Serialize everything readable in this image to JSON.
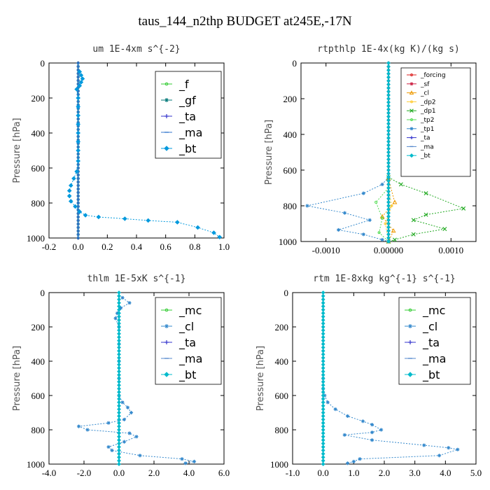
{
  "figure": {
    "title": "taus_144_n2thp  BUDGET at245E,-17N"
  },
  "chart_data": [
    {
      "type": "line",
      "title": "um  1E-4xm s^{-2}",
      "ylabel": "Pressure [hPa]",
      "xlim": [
        -0.2,
        1.0
      ],
      "ylim": [
        1000,
        0
      ],
      "xticks": [
        "-0.2",
        "0.0",
        "0.2",
        "0.4",
        "0.6",
        "0.8",
        "1.0"
      ],
      "xtick_values": [
        -0.2,
        0.0,
        0.2,
        0.4,
        0.6,
        0.8,
        1.0
      ],
      "yticks": [
        "0",
        "200",
        "400",
        "600",
        "800",
        "1000"
      ],
      "ytick_values": [
        0,
        200,
        400,
        600,
        800,
        1000
      ],
      "legend_position": "top-right",
      "series": [
        {
          "name": "_f",
          "color": "#33cc33",
          "marker": "circle",
          "x": [
            0,
            0
          ],
          "y": [
            0,
            1000
          ]
        },
        {
          "name": "_gf",
          "color": "#007777",
          "marker": "star",
          "x": [
            0,
            0
          ],
          "y": [
            0,
            1000
          ]
        },
        {
          "name": "_ta",
          "color": "#3333cc",
          "marker": "plus",
          "x": [
            0,
            0
          ],
          "y": [
            0,
            1000
          ]
        },
        {
          "name": "_ma",
          "color": "#3377cc",
          "marker": "dash",
          "x": [
            0,
            0
          ],
          "y": [
            0,
            1000
          ]
        },
        {
          "name": "_bt",
          "color": "#0099dd",
          "marker": "diamond",
          "x": [
            0.01,
            0.02,
            0.03,
            0.02,
            0.01,
            -0.01,
            0.0,
            0.0,
            0.0,
            0.0,
            0.0,
            0.0,
            0.0,
            0.0,
            -0.01,
            -0.03,
            -0.05,
            -0.06,
            -0.06,
            -0.05,
            -0.02,
            0.01,
            0.05,
            0.14,
            0.32,
            0.48,
            0.68,
            0.82,
            0.93,
            0.97
          ],
          "y": [
            50,
            70,
            90,
            110,
            130,
            150,
            200,
            250,
            300,
            350,
            400,
            450,
            500,
            560,
            620,
            660,
            700,
            730,
            760,
            790,
            820,
            850,
            870,
            880,
            890,
            900,
            910,
            940,
            970,
            995
          ]
        }
      ]
    },
    {
      "type": "line",
      "title": "rtpthlp  1E-4x(kg K)/(kg s)",
      "ylabel": "Pressure [hPa]",
      "xlim": [
        -0.0014,
        0.0014
      ],
      "ylim": [
        1000,
        0
      ],
      "xticks": [
        "-0.0010",
        "0.00000",
        "0.0010"
      ],
      "xtick_values": [
        -0.001,
        0.0,
        0.001
      ],
      "yticks": [
        "0",
        "200",
        "400",
        "600",
        "800",
        "1000"
      ],
      "ytick_values": [
        0,
        200,
        400,
        600,
        800,
        1000
      ],
      "legend_position": "top-right",
      "series": [
        {
          "name": "_forcing",
          "color": "#dd2222",
          "marker": "circle",
          "x": [
            0,
            0
          ],
          "y": [
            0,
            1000
          ]
        },
        {
          "name": "_sf",
          "color": "#cc2244",
          "marker": "star",
          "x": [
            0,
            0
          ],
          "y": [
            0,
            1000
          ]
        },
        {
          "name": "_cl",
          "color": "#ee9900",
          "marker": "triangle",
          "x": [
            0,
            0.0001,
            -0.0001,
            8e-05,
            0
          ],
          "y": [
            650,
            780,
            860,
            940,
            1000
          ]
        },
        {
          "name": "_dp2",
          "color": "#ffcc33",
          "marker": "circle",
          "x": [
            0,
            5e-05,
            -5e-05,
            0
          ],
          "y": [
            700,
            800,
            900,
            1000
          ]
        },
        {
          "name": "_dp1",
          "color": "#22aa22",
          "marker": "cross",
          "x": [
            0.0,
            0.0002,
            0.0006,
            0.0012,
            0.0006,
            0.0004,
            0.0009,
            0.0004,
            0.0001,
            0.0
          ],
          "y": [
            640,
            680,
            730,
            815,
            850,
            880,
            930,
            960,
            990,
            1000
          ]
        },
        {
          "name": "_tp2",
          "color": "#55dd55",
          "marker": "circle",
          "x": [
            0,
            -0.0002,
            -0.0001,
            -0.00015,
            0
          ],
          "y": [
            700,
            780,
            870,
            950,
            1000
          ]
        },
        {
          "name": "_tp1",
          "color": "#3388cc",
          "marker": "star",
          "x": [
            0.0,
            -0.0001,
            -0.0004,
            -0.0013,
            -0.0007,
            -0.0003,
            -0.0008,
            -0.0004,
            -0.0001,
            0.0
          ],
          "y": [
            640,
            680,
            730,
            800,
            840,
            880,
            935,
            960,
            990,
            1000
          ]
        },
        {
          "name": "_ta",
          "color": "#3333cc",
          "marker": "plus",
          "x": [
            0,
            0
          ],
          "y": [
            0,
            1000
          ]
        },
        {
          "name": "_ma",
          "color": "#5588cc",
          "marker": "dash",
          "x": [
            0,
            0
          ],
          "y": [
            0,
            1000
          ]
        },
        {
          "name": "_bt",
          "color": "#00bbcc",
          "marker": "diamond",
          "x": [
            0,
            0
          ],
          "y": [
            0,
            1000
          ]
        }
      ]
    },
    {
      "type": "line",
      "title": "thlm  1E-5xK s^{-1}",
      "ylabel": "Pressure [hPa]",
      "xlim": [
        -4.0,
        6.0
      ],
      "ylim": [
        1000,
        0
      ],
      "xticks": [
        "-4.0",
        "-2.0",
        "0.0",
        "2.0",
        "4.0",
        "6.0"
      ],
      "xtick_values": [
        -4,
        -2,
        0,
        2,
        4,
        6
      ],
      "yticks": [
        "0",
        "200",
        "400",
        "600",
        "800",
        "1000"
      ],
      "ytick_values": [
        0,
        200,
        400,
        600,
        800,
        1000
      ],
      "legend_position": "top-right",
      "series": [
        {
          "name": "_mc",
          "color": "#33cc33",
          "marker": "circle",
          "x": [
            0,
            0
          ],
          "y": [
            0,
            1000
          ]
        },
        {
          "name": "_cl",
          "color": "#3388cc",
          "marker": "star",
          "x": [
            0.2,
            0.6,
            0.1,
            -0.1,
            -0.2,
            0.0,
            0.0,
            0.0,
            0.0,
            0.0,
            0.2,
            0.5,
            0.7,
            0.3,
            -0.6,
            -2.3,
            -1.8,
            0.6,
            1.0,
            0.3,
            -0.6,
            -0.4,
            1.2,
            3.6,
            4.3,
            3.8
          ],
          "y": [
            30,
            60,
            90,
            120,
            150,
            200,
            300,
            400,
            500,
            600,
            640,
            670,
            700,
            740,
            760,
            780,
            800,
            820,
            840,
            870,
            900,
            920,
            950,
            970,
            985,
            995
          ]
        },
        {
          "name": "_ta",
          "color": "#3333cc",
          "marker": "plus",
          "x": [
            0,
            0
          ],
          "y": [
            0,
            1000
          ]
        },
        {
          "name": "_ma",
          "color": "#5588cc",
          "marker": "dash",
          "x": [
            0,
            0
          ],
          "y": [
            0,
            1000
          ]
        },
        {
          "name": "_bt",
          "color": "#00bbcc",
          "marker": "diamond",
          "x": [
            0,
            0
          ],
          "y": [
            0,
            1000
          ]
        }
      ]
    },
    {
      "type": "line",
      "title": "rtm  1E-8xkg kg^{-1} s^{-1}",
      "ylabel": "Pressure [hPa]",
      "xlim": [
        -1.0,
        5.0
      ],
      "ylim": [
        1000,
        0
      ],
      "xticks": [
        "-1.0",
        "0.0",
        "1.0",
        "2.0",
        "3.0",
        "4.0",
        "5.0"
      ],
      "xtick_values": [
        -1,
        0,
        1,
        2,
        3,
        4,
        5
      ],
      "yticks": [
        "0",
        "200",
        "400",
        "600",
        "800",
        "1000"
      ],
      "ytick_values": [
        0,
        200,
        400,
        600,
        800,
        1000
      ],
      "legend_position": "top-right",
      "series": [
        {
          "name": "_mc",
          "color": "#33cc33",
          "marker": "circle",
          "x": [
            0,
            0
          ],
          "y": [
            0,
            1000
          ]
        },
        {
          "name": "_cl",
          "color": "#3388cc",
          "marker": "star",
          "x": [
            0.0,
            0.0,
            0.05,
            0.15,
            0.4,
            0.8,
            1.3,
            1.6,
            1.9,
            1.6,
            0.7,
            1.6,
            3.3,
            4.1,
            4.4,
            3.8,
            1.2,
            1.0,
            0.8
          ],
          "y": [
            500,
            560,
            600,
            640,
            680,
            720,
            750,
            770,
            800,
            815,
            830,
            860,
            890,
            905,
            915,
            950,
            970,
            985,
            995
          ]
        },
        {
          "name": "_ta",
          "color": "#3333cc",
          "marker": "plus",
          "x": [
            0,
            0
          ],
          "y": [
            0,
            1000
          ]
        },
        {
          "name": "_ma",
          "color": "#5588cc",
          "marker": "dash",
          "x": [
            0,
            0
          ],
          "y": [
            0,
            1000
          ]
        },
        {
          "name": "_bt",
          "color": "#00bbcc",
          "marker": "diamond",
          "x": [
            0,
            0
          ],
          "y": [
            0,
            1000
          ]
        }
      ]
    }
  ]
}
